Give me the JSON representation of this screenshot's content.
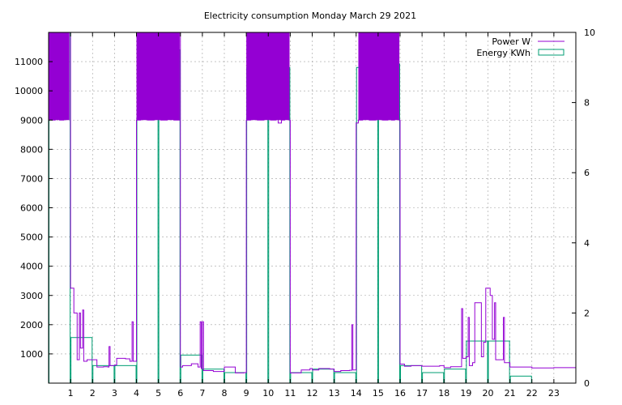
{
  "chart_data": {
    "type": "line",
    "title": "Electricity consumption Monday March 29 2021",
    "x_ticks": [
      "1",
      "2",
      "3",
      "4",
      "5",
      "6",
      "7",
      "8",
      "9",
      "10",
      "11",
      "12",
      "13",
      "14",
      "15",
      "16",
      "17",
      "18",
      "19",
      "20",
      "21",
      "22",
      "23"
    ],
    "y_left_ticks": [
      "1000",
      "2000",
      "3000",
      "4000",
      "5000",
      "6000",
      "7000",
      "8000",
      "9000",
      "10000",
      "11000"
    ],
    "y_right_ticks": [
      "0",
      "2",
      "4",
      "6",
      "8",
      "10"
    ],
    "xlim": [
      0,
      24
    ],
    "y_left_lim": [
      0,
      12000
    ],
    "y_right_lim": [
      0,
      10
    ],
    "grid": true,
    "legend_position": "top-right",
    "series": [
      {
        "name": "Power W",
        "axis": "left",
        "color": "#9400d3",
        "style": "steps",
        "points": [
          [
            0.0,
            9000
          ],
          [
            0.05,
            12000
          ],
          [
            0.15,
            9000
          ],
          [
            0.3,
            12000
          ],
          [
            0.5,
            9000
          ],
          [
            0.7,
            12000
          ],
          [
            0.95,
            12000
          ],
          [
            1.0,
            3250
          ],
          [
            1.15,
            2400
          ],
          [
            1.3,
            800
          ],
          [
            1.4,
            2400
          ],
          [
            1.45,
            1200
          ],
          [
            1.55,
            2500
          ],
          [
            1.6,
            750
          ],
          [
            1.75,
            800
          ],
          [
            2.0,
            800
          ],
          [
            2.2,
            550
          ],
          [
            2.5,
            560
          ],
          [
            2.7,
            550
          ],
          [
            2.75,
            1250
          ],
          [
            2.8,
            600
          ],
          [
            3.0,
            620
          ],
          [
            3.1,
            850
          ],
          [
            3.5,
            830
          ],
          [
            3.7,
            750
          ],
          [
            3.8,
            2100
          ],
          [
            3.85,
            750
          ],
          [
            4.0,
            9000
          ],
          [
            4.2,
            12000
          ],
          [
            4.5,
            9000
          ],
          [
            4.8,
            12000
          ],
          [
            5.1,
            9000
          ],
          [
            5.4,
            12000
          ],
          [
            5.7,
            9000
          ],
          [
            5.95,
            12000
          ],
          [
            6.0,
            550
          ],
          [
            6.1,
            600
          ],
          [
            6.5,
            660
          ],
          [
            6.8,
            550
          ],
          [
            6.9,
            2100
          ],
          [
            6.95,
            500
          ],
          [
            7.0,
            2100
          ],
          [
            7.05,
            430
          ],
          [
            7.5,
            400
          ],
          [
            8.0,
            550
          ],
          [
            8.5,
            350
          ],
          [
            8.9,
            360
          ],
          [
            9.0,
            9000
          ],
          [
            9.2,
            12000
          ],
          [
            9.5,
            9000
          ],
          [
            9.8,
            12000
          ],
          [
            10.1,
            9000
          ],
          [
            10.35,
            12000
          ],
          [
            10.45,
            8900
          ],
          [
            10.6,
            9000
          ],
          [
            10.75,
            12000
          ],
          [
            10.95,
            9000
          ],
          [
            11.0,
            350
          ],
          [
            11.3,
            350
          ],
          [
            11.5,
            450
          ],
          [
            11.9,
            500
          ],
          [
            12.0,
            450
          ],
          [
            12.3,
            500
          ],
          [
            12.8,
            480
          ],
          [
            13.0,
            400
          ],
          [
            13.3,
            430
          ],
          [
            13.7,
            440
          ],
          [
            13.8,
            2000
          ],
          [
            13.85,
            450
          ],
          [
            14.0,
            8900
          ],
          [
            14.1,
            9000
          ],
          [
            14.3,
            12000
          ],
          [
            14.6,
            9000
          ],
          [
            14.9,
            12000
          ],
          [
            15.2,
            9000
          ],
          [
            15.45,
            12000
          ],
          [
            15.6,
            9000
          ],
          [
            15.75,
            12000
          ],
          [
            15.95,
            9000
          ],
          [
            16.0,
            650
          ],
          [
            16.2,
            580
          ],
          [
            16.5,
            600
          ],
          [
            17.0,
            580
          ],
          [
            17.5,
            580
          ],
          [
            17.8,
            600
          ],
          [
            18.0,
            530
          ],
          [
            18.3,
            560
          ],
          [
            18.6,
            560
          ],
          [
            18.8,
            2550
          ],
          [
            18.85,
            850
          ],
          [
            19.0,
            900
          ],
          [
            19.1,
            2250
          ],
          [
            19.15,
            600
          ],
          [
            19.3,
            700
          ],
          [
            19.4,
            2750
          ],
          [
            19.7,
            900
          ],
          [
            19.8,
            1400
          ],
          [
            19.9,
            3250
          ],
          [
            20.1,
            3000
          ],
          [
            20.2,
            1500
          ],
          [
            20.3,
            2750
          ],
          [
            20.35,
            800
          ],
          [
            20.6,
            800
          ],
          [
            20.7,
            2250
          ],
          [
            20.75,
            700
          ],
          [
            21.0,
            550
          ],
          [
            21.5,
            550
          ],
          [
            22.0,
            520
          ],
          [
            22.5,
            520
          ],
          [
            23.0,
            530
          ],
          [
            23.5,
            530
          ],
          [
            24.0,
            530
          ]
        ]
      },
      {
        "name": "Energy KWh",
        "axis": "right",
        "color": "#009e73",
        "style": "boxes",
        "values": [
          10,
          1.3,
          0.5,
          0.5,
          9.2,
          9.5,
          0.8,
          0.4,
          0.3,
          9.0,
          9.0,
          0.3,
          0.4,
          0.3,
          9.0,
          9.1,
          0.5,
          0.3,
          0.4,
          1.2,
          1.2,
          0.2,
          0,
          0
        ]
      }
    ]
  }
}
